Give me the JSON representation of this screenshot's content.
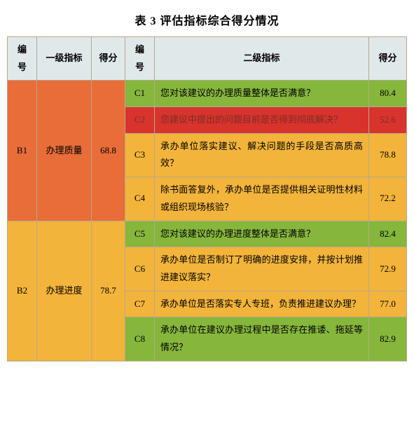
{
  "title": "表 3  评估指标综合得分情况",
  "headers": {
    "code": "编号",
    "level1": "一级指标",
    "score": "得分",
    "code2": "编号",
    "level2": "二级指标",
    "score2": "得分"
  },
  "colors": {
    "header_bg": "#e1e8e9",
    "border": "#b5a98f",
    "page_bg": "#ffffff",
    "b1_bg": "#e86d39",
    "b2_bg": "#f2b43a",
    "c1_bg": "#86b63c",
    "c2_bg": "#d8332d",
    "c2_text": "#7a2f22",
    "c3_bg": "#f2b43a",
    "c4_bg": "#f2b43a",
    "c5_bg": "#86b63c",
    "c6_bg": "#f2b43a",
    "c7_bg": "#f2b43a",
    "c8_bg": "#86b63c"
  },
  "groups": [
    {
      "code": "B1",
      "name": "办理质量",
      "score": "68.8",
      "bg": "#e86d39",
      "rows": [
        {
          "code": "C1",
          "question": "您对该建议的办理质量整体是否满意？",
          "score": "80.4",
          "bg": "#86b63c",
          "text": "#000000"
        },
        {
          "code": "C2",
          "question": "您建议中提出的问题目前是否得到彻底解决？",
          "score": "52.6",
          "bg": "#d8332d",
          "text": "#7a2f22"
        },
        {
          "code": "C3",
          "question": "承办单位落实建议、解决问题的手段是否高质高效？",
          "score": "78.8",
          "bg": "#f2b43a",
          "text": "#000000"
        },
        {
          "code": "C4",
          "question": "除书面答复外，承办单位是否提供相关证明性材料或组织现场核验？",
          "score": "72.2",
          "bg": "#f2b43a",
          "text": "#000000"
        }
      ]
    },
    {
      "code": "B2",
      "name": "办理进度",
      "score": "78.7",
      "bg": "#f2b43a",
      "rows": [
        {
          "code": "C5",
          "question": "您对该建议的办理进度整体是否满意？",
          "score": "82.4",
          "bg": "#86b63c",
          "text": "#000000"
        },
        {
          "code": "C6",
          "question": "承办单位是否制订了明确的进度安排，并按计划推进建议落实？",
          "score": "72.9",
          "bg": "#f2b43a",
          "text": "#000000"
        },
        {
          "code": "C7",
          "question": "承办单位是否落实专人专班，负责推进建议办理？",
          "score": "77.0",
          "bg": "#f2b43a",
          "text": "#000000"
        },
        {
          "code": "C8",
          "question": "承办单位在建议办理过程中是否存在推诿、拖延等情况？",
          "score": "82.9",
          "bg": "#86b63c",
          "text": "#000000"
        }
      ]
    }
  ]
}
